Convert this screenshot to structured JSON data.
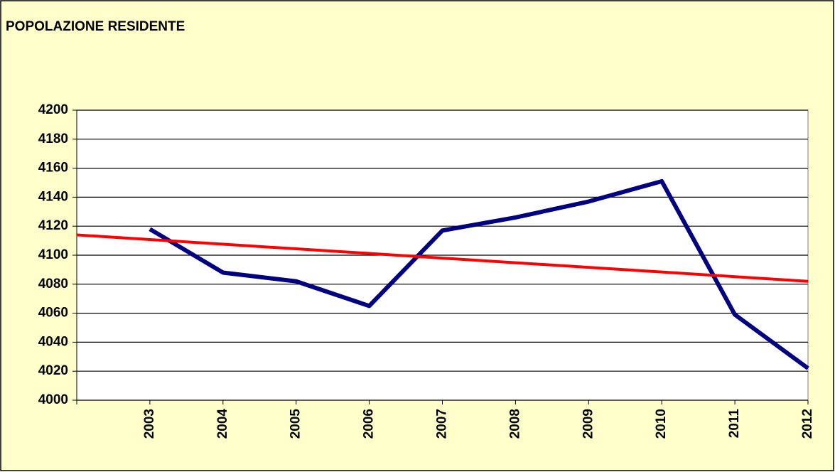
{
  "chart_data": {
    "type": "line",
    "title": "POPOLAZIONE RESIDENTE",
    "categories": [
      null,
      "2003",
      "2004",
      "2005",
      "2006",
      "2007",
      "2008",
      "2009",
      "2010",
      "2011",
      "2012"
    ],
    "series": [
      {
        "color": "#000080",
        "values": [
          null,
          4118,
          4088,
          4082,
          4065,
          4117,
          4126,
          4137,
          4151,
          4059,
          4022
        ]
      },
      {
        "color": "#ff0000",
        "values": [
          4114,
          4110.8,
          4107.6,
          4104.4,
          4101.2,
          4098,
          4094.8,
          4091.6,
          4088.4,
          4085.2,
          4082
        ]
      }
    ],
    "ylim": [
      4000,
      4200
    ],
    "yticks": [
      4000,
      4020,
      4040,
      4060,
      4080,
      4100,
      4120,
      4140,
      4160,
      4180,
      4200
    ],
    "grid": true
  }
}
